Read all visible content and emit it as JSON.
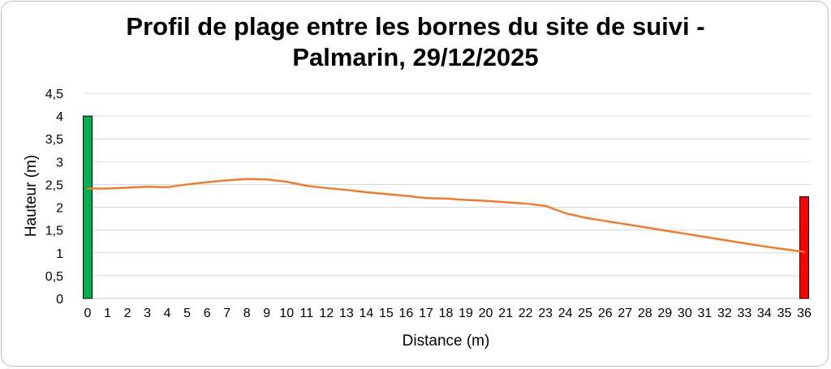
{
  "chart_data": {
    "type": "line",
    "title_line1": "Profil de plage entre les bornes du site de suivi -",
    "title_line2": "Palmarin, 29/12/2025",
    "xlabel": "Distance (m)",
    "ylabel": "Hauteur (m)",
    "xlim": [
      0,
      36
    ],
    "ylim": [
      0,
      4.5
    ],
    "x_ticks": [
      "0",
      "1",
      "2",
      "3",
      "4",
      "5",
      "6",
      "7",
      "8",
      "9",
      "10",
      "11",
      "12",
      "13",
      "14",
      "15",
      "16",
      "17",
      "18",
      "19",
      "20",
      "21",
      "22",
      "23",
      "24",
      "25",
      "26",
      "27",
      "28",
      "29",
      "30",
      "31",
      "32",
      "33",
      "34",
      "35",
      "36"
    ],
    "y_ticks": [
      "0",
      "0,5",
      "1",
      "1,5",
      "2",
      "2,5",
      "3",
      "3,5",
      "4",
      "4,5"
    ],
    "grid": "horizontal",
    "series": [
      {
        "color": "#ed7d31",
        "x": [
          0,
          1,
          2,
          3,
          4,
          5,
          6,
          7,
          8,
          9,
          10,
          11,
          12,
          13,
          14,
          15,
          16,
          17,
          18,
          19,
          20,
          21,
          22,
          23,
          24,
          25,
          26,
          27,
          28,
          29,
          30,
          31,
          32,
          33,
          34,
          35,
          36
        ],
        "values": [
          2.41,
          2.41,
          2.43,
          2.45,
          2.44,
          2.5,
          2.55,
          2.59,
          2.62,
          2.61,
          2.56,
          2.47,
          2.42,
          2.38,
          2.33,
          2.29,
          2.25,
          2.2,
          2.19,
          2.16,
          2.14,
          2.11,
          2.08,
          2.03,
          1.87,
          1.77,
          1.7,
          1.63,
          1.56,
          1.49,
          1.42,
          1.35,
          1.28,
          1.21,
          1.14,
          1.08,
          1.02
        ]
      }
    ],
    "markers": [
      {
        "x": 0,
        "value": 4.0,
        "color": "#00b050"
      },
      {
        "x": 36,
        "value": 2.23,
        "color": "#ff0000"
      }
    ]
  }
}
